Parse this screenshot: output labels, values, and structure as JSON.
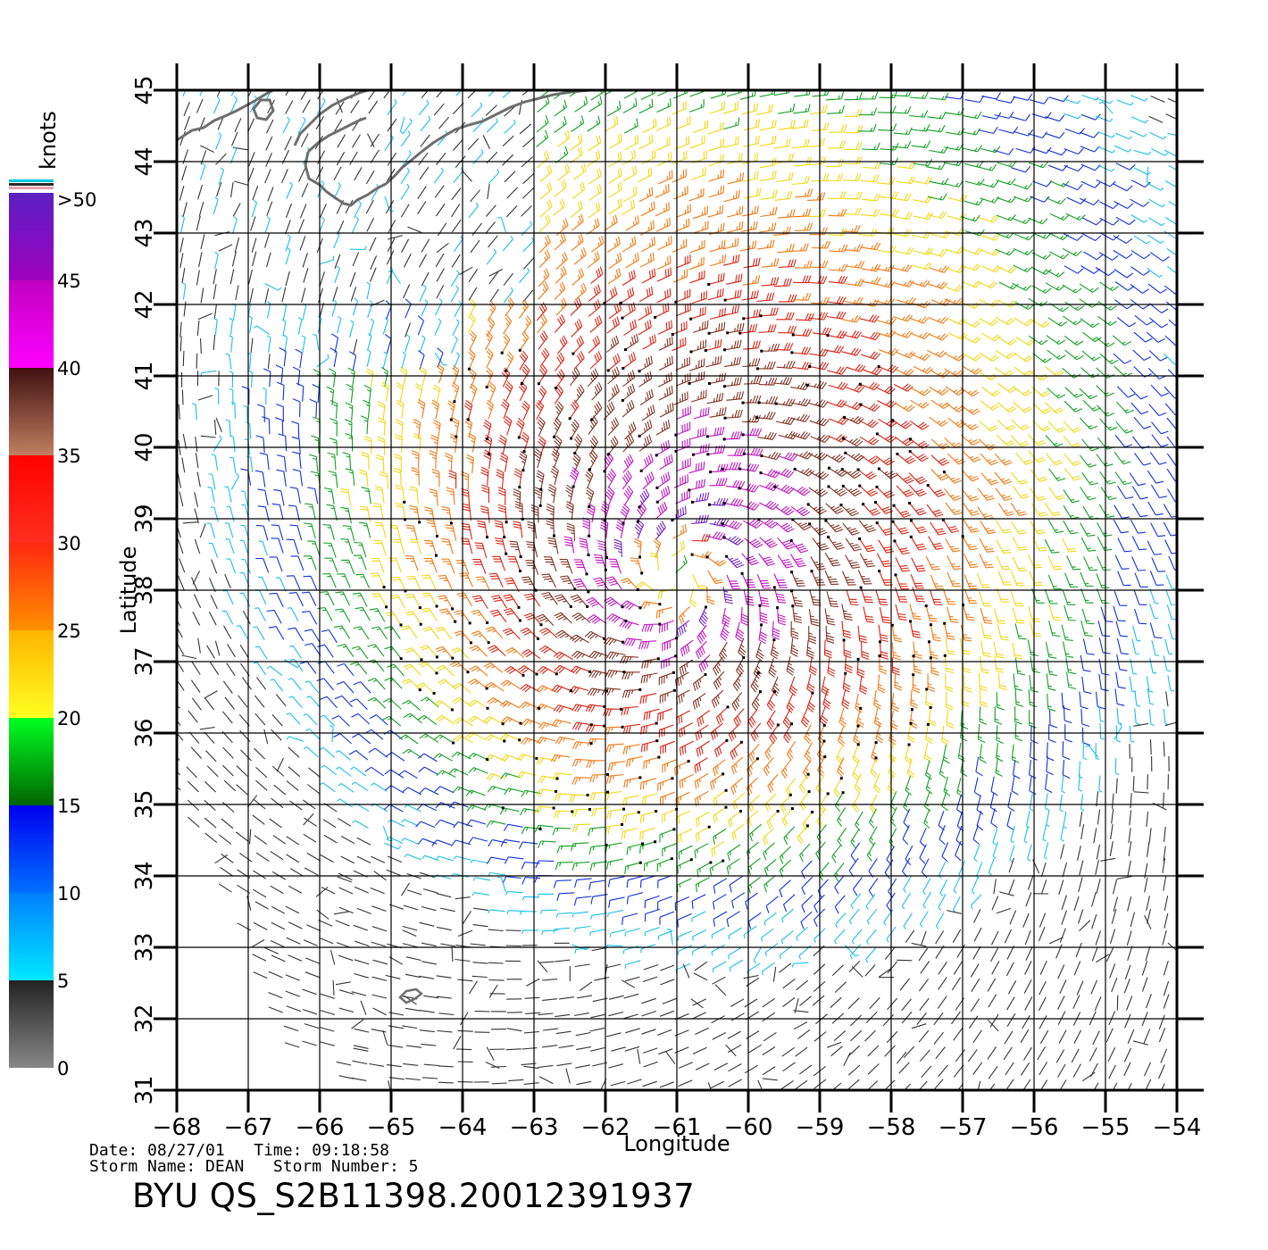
{
  "map": {
    "lon_ticks": [
      -68,
      -67,
      -66,
      -65,
      -64,
      -63,
      -62,
      -61,
      -60,
      -59,
      -58,
      -57,
      -56,
      -55,
      -54
    ],
    "lat_ticks": [
      31,
      32,
      33,
      34,
      35,
      36,
      37,
      38,
      39,
      40,
      41,
      42,
      43,
      44,
      45
    ],
    "lon_range": [
      -68,
      -54
    ],
    "lat_range": [
      31,
      45
    ],
    "xlabel": "Longitude",
    "ylabel": "Latitude",
    "storm_center": {
      "lon": -61.0,
      "lat": 38.2
    },
    "land": [
      "Nova Scotia",
      "Bermuda"
    ]
  },
  "colorbar": {
    "unit_label": "knots",
    "labels": [
      {
        "text": ">50",
        "value": 50
      },
      {
        "text": "45",
        "value": 45
      },
      {
        "text": "40",
        "value": 40
      },
      {
        "text": "35",
        "value": 35
      },
      {
        "text": "30",
        "value": 30
      },
      {
        "text": "25",
        "value": 25
      },
      {
        "text": "20",
        "value": 20
      },
      {
        "text": "15",
        "value": 15
      },
      {
        "text": "10",
        "value": 10
      },
      {
        "text": "5",
        "value": 5
      },
      {
        "text": "0",
        "value": 0
      }
    ],
    "bands": [
      {
        "from": 0,
        "to": 5,
        "colors": [
          "#888888",
          "#222222"
        ]
      },
      {
        "from": 5,
        "to": 10,
        "colors": [
          "#00e8ff",
          "#0080ff"
        ]
      },
      {
        "from": 10,
        "to": 15,
        "colors": [
          "#0070ff",
          "#0000ee"
        ]
      },
      {
        "from": 15,
        "to": 20,
        "colors": [
          "#006400",
          "#00ff20"
        ]
      },
      {
        "from": 20,
        "to": 25,
        "colors": [
          "#ffff20",
          "#ffb400"
        ]
      },
      {
        "from": 25,
        "to": 30,
        "colors": [
          "#ff9000",
          "#ff2810"
        ]
      },
      {
        "from": 30,
        "to": 35,
        "colors": [
          "#ff3020",
          "#ff0000"
        ]
      },
      {
        "from": 35,
        "to": 40,
        "colors": [
          "#c08060",
          "#401010"
        ]
      },
      {
        "from": 40,
        "to": 45,
        "colors": [
          "#ff00ff",
          "#c000c0"
        ]
      },
      {
        "from": 45,
        "to": 50,
        "colors": [
          "#a000c0",
          "#5a20c0"
        ]
      }
    ]
  },
  "info": {
    "line1": "Date: 08/27/01   Time: 09:18:58",
    "line2": "Storm Name: DEAN   Storm Number: 5",
    "title": "BYU QS_S2B11398.20012391937"
  }
}
